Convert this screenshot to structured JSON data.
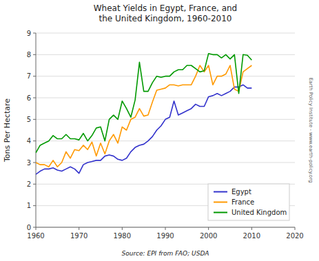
{
  "chart_data": {
    "type": "line",
    "title": "Wheat Yields in Egypt, France, and\nthe United Kingdom, 1960-2010",
    "ylabel": "Tons Per Hectare",
    "annotations": [
      "Source: EPI from FAO; USDA",
      "Earth Policy Institute - www.earth-policy.org"
    ],
    "x": [
      1960,
      1961,
      1962,
      1963,
      1964,
      1965,
      1966,
      1967,
      1968,
      1969,
      1970,
      1971,
      1972,
      1973,
      1974,
      1975,
      1976,
      1977,
      1978,
      1979,
      1980,
      1981,
      1982,
      1983,
      1984,
      1985,
      1986,
      1987,
      1988,
      1989,
      1990,
      1991,
      1992,
      1993,
      1994,
      1995,
      1996,
      1997,
      1998,
      1999,
      2000,
      2001,
      2002,
      2003,
      2004,
      2005,
      2006,
      2007,
      2008,
      2009,
      2010
    ],
    "series": [
      {
        "name": "Egypt",
        "color": "#3333cc",
        "values": [
          2.45,
          2.6,
          2.7,
          2.7,
          2.75,
          2.65,
          2.6,
          2.7,
          2.8,
          2.7,
          2.5,
          2.9,
          3.0,
          3.05,
          3.1,
          3.1,
          3.3,
          3.35,
          3.3,
          3.15,
          3.1,
          3.2,
          3.5,
          3.7,
          3.8,
          3.85,
          4.0,
          4.2,
          4.5,
          4.7,
          5.0,
          5.1,
          5.85,
          5.2,
          5.3,
          5.4,
          5.5,
          5.7,
          5.6,
          5.6,
          6.05,
          6.1,
          6.2,
          6.1,
          6.2,
          6.3,
          6.5,
          6.5,
          6.6,
          6.45,
          6.45
        ]
      },
      {
        "name": "France",
        "color": "#ff9900",
        "values": [
          3.0,
          2.9,
          2.9,
          2.8,
          3.1,
          2.8,
          3.0,
          3.5,
          3.2,
          3.6,
          3.55,
          3.8,
          3.6,
          3.95,
          3.3,
          3.9,
          3.4,
          4.0,
          4.3,
          3.9,
          4.65,
          4.5,
          5.0,
          5.1,
          5.5,
          5.15,
          5.2,
          5.8,
          6.35,
          6.4,
          6.45,
          6.6,
          6.6,
          6.55,
          6.6,
          6.6,
          6.6,
          7.0,
          7.5,
          7.2,
          7.5,
          6.6,
          7.0,
          7.0,
          7.1,
          7.5,
          6.4,
          6.3,
          7.2,
          7.35,
          7.5
        ]
      },
      {
        "name": "United Kingdom",
        "color": "#009900",
        "values": [
          3.45,
          3.8,
          3.9,
          4.0,
          4.25,
          4.1,
          4.1,
          4.3,
          4.1,
          4.1,
          4.05,
          4.35,
          4.0,
          4.25,
          4.6,
          4.65,
          4.0,
          5.0,
          5.2,
          5.0,
          5.85,
          5.5,
          5.1,
          5.9,
          7.65,
          6.3,
          6.3,
          6.7,
          7.0,
          6.95,
          7.0,
          7.0,
          7.2,
          7.3,
          7.3,
          7.5,
          7.5,
          7.35,
          7.2,
          7.25,
          8.05,
          8.0,
          8.0,
          7.85,
          8.0,
          7.8,
          8.0,
          6.2,
          8.0,
          7.97,
          7.75
        ]
      }
    ],
    "xlim": [
      1960,
      2020
    ],
    "ylim": [
      0,
      9
    ],
    "xticks": [
      1960,
      1970,
      1980,
      1990,
      2000,
      2010,
      2020
    ],
    "yticks": [
      0,
      1,
      2,
      3,
      4,
      5,
      6,
      7,
      8,
      9
    ],
    "grid": true,
    "legend": "lower right"
  }
}
